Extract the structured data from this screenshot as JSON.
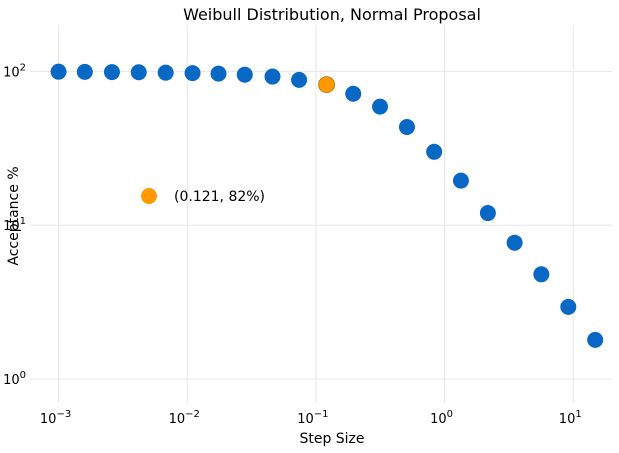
{
  "chart_data": {
    "type": "scatter",
    "title": "Weibull Distribution, Normal Proposal",
    "xlabel": "Step Size",
    "ylabel": "Acceptance %",
    "x_scale": "log",
    "y_scale": "log",
    "xlim": [
      0.0006,
      20
    ],
    "ylim": [
      0.7,
      200
    ],
    "grid": true,
    "x_ticks": [
      {
        "value": 0.001,
        "base": "10",
        "exp": "−3"
      },
      {
        "value": 0.01,
        "base": "10",
        "exp": "−2"
      },
      {
        "value": 0.1,
        "base": "10",
        "exp": "−1"
      },
      {
        "value": 1,
        "base": "10",
        "exp": "0"
      },
      {
        "value": 10,
        "base": "10",
        "exp": "1"
      }
    ],
    "y_ticks": [
      {
        "value": 1,
        "base": "10",
        "exp": "0"
      },
      {
        "value": 10,
        "base": "10",
        "exp": "1"
      },
      {
        "value": 100,
        "base": "10",
        "exp": "2"
      }
    ],
    "series": [
      {
        "color": "#0868c4",
        "points": [
          {
            "x": 0.001,
            "y": 99.5
          },
          {
            "x": 0.0016,
            "y": 99.2
          },
          {
            "x": 0.0026,
            "y": 98.9
          },
          {
            "x": 0.0042,
            "y": 98.6
          },
          {
            "x": 0.0068,
            "y": 98.0
          },
          {
            "x": 0.011,
            "y": 97.4
          },
          {
            "x": 0.0175,
            "y": 96.6
          },
          {
            "x": 0.028,
            "y": 95.1
          },
          {
            "x": 0.046,
            "y": 92.5
          },
          {
            "x": 0.074,
            "y": 88.0
          },
          {
            "x": 0.195,
            "y": 71.5
          },
          {
            "x": 0.315,
            "y": 59.0
          },
          {
            "x": 0.51,
            "y": 43.5
          },
          {
            "x": 0.83,
            "y": 30.0
          },
          {
            "x": 1.34,
            "y": 19.5
          },
          {
            "x": 2.17,
            "y": 12.0
          },
          {
            "x": 3.5,
            "y": 7.7
          },
          {
            "x": 5.65,
            "y": 4.8
          },
          {
            "x": 9.15,
            "y": 2.95
          },
          {
            "x": 14.8,
            "y": 1.8
          }
        ]
      },
      {
        "color": "#ff9900",
        "points": [
          {
            "x": 0.121,
            "y": 82
          }
        ]
      }
    ],
    "annotation": {
      "text": "(0.121, 82%)",
      "color": "#ff9900"
    }
  }
}
